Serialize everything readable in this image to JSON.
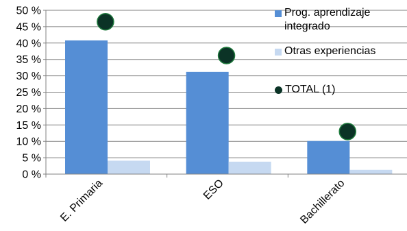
{
  "chart_data": {
    "type": "bar",
    "categories": [
      "E. Primaria",
      "ESO",
      "Bachillerato"
    ],
    "series": [
      {
        "name": "Prog. aprendizaje integrado",
        "kind": "bar",
        "color": "#558ED5",
        "values": [
          40.8,
          31.2,
          10.1
        ]
      },
      {
        "name": "Otras experiencias",
        "kind": "bar",
        "color": "#C6D9F1",
        "values": [
          4.1,
          3.8,
          1.3
        ]
      },
      {
        "name": "TOTAL (1)",
        "kind": "marker",
        "color": "#0B3326",
        "values": [
          46.5,
          36.2,
          13.0
        ]
      }
    ],
    "yticks": [
      "0 %",
      "5 %",
      "10 %",
      "15 %",
      "20 %",
      "25 %",
      "30 %",
      "35 %",
      "40 %",
      "45 %",
      "50 %"
    ],
    "ylim": [
      0,
      50
    ],
    "grid": true,
    "legend_position": "right"
  }
}
